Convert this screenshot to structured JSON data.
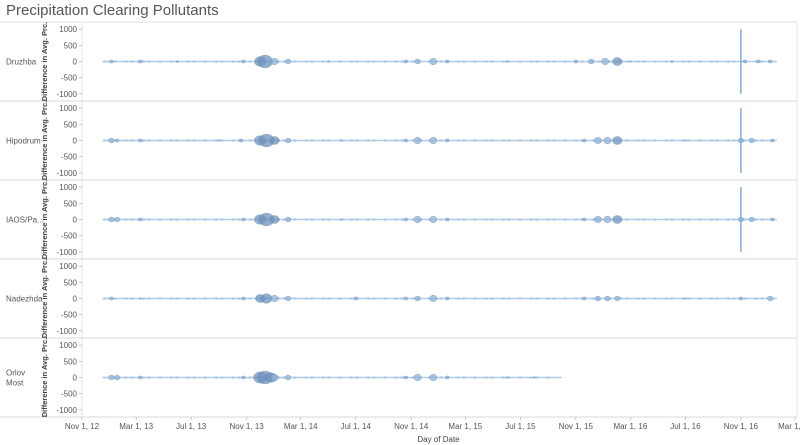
{
  "chart_data": {
    "type": "scatter",
    "title": "Precipitation Clearing Pollutants",
    "xlabel": "Day of Date",
    "ylabel": "Difference in Avg. Prc.",
    "ylim": [
      -1100,
      1100
    ],
    "y_ticks": [
      "1000",
      "500",
      "0",
      "-500",
      "-1000"
    ],
    "y_tick_values": [
      1000,
      500,
      0,
      -500,
      -1000
    ],
    "x_ticks": [
      "Nov 1, 12",
      "Mar 1, 13",
      "Jul 1, 13",
      "Nov 1, 13",
      "Mar 1, 14",
      "Jul 1, 14",
      "Nov 1, 14",
      "Mar 1, 15",
      "Jul 1, 15",
      "Nov 1, 15",
      "Mar 1, 16",
      "Jul 1, 16",
      "Nov 1, 16",
      "Mar 1, 17"
    ],
    "x_range": [
      "2012-11-01",
      "2017-03-01"
    ],
    "grid": false,
    "legend": "none",
    "color": "#7ea7cf",
    "rows": [
      {
        "label": "Druzhba",
        "bubbles": [
          [
            "2013-01-05",
            2
          ],
          [
            "2013-03-10",
            2
          ],
          [
            "2013-06-01",
            1
          ],
          [
            "2013-10-25",
            2
          ],
          [
            "2013-12-01",
            6
          ],
          [
            "2013-12-12",
            8
          ],
          [
            "2014-01-02",
            4
          ],
          [
            "2014-02-01",
            3
          ],
          [
            "2014-05-01",
            1
          ],
          [
            "2014-10-20",
            2
          ],
          [
            "2014-11-15",
            3
          ],
          [
            "2014-12-20",
            4
          ],
          [
            "2015-01-20",
            2
          ],
          [
            "2015-06-01",
            1
          ],
          [
            "2015-11-01",
            2
          ],
          [
            "2015-12-05",
            3
          ],
          [
            "2016-01-05",
            4
          ],
          [
            "2016-02-01",
            5
          ],
          [
            "2016-03-01",
            1
          ],
          [
            "2016-06-01",
            1
          ],
          [
            "2016-11-10",
            2
          ],
          [
            "2016-12-10",
            2
          ],
          [
            "2017-01-05",
            2
          ]
        ],
        "spike": [
          "2016-11-01",
          1000,
          -1000
        ]
      },
      {
        "label": "Hipodrum",
        "bubbles": [
          [
            "2013-01-05",
            3
          ],
          [
            "2013-01-18",
            2
          ],
          [
            "2013-03-10",
            2
          ],
          [
            "2013-09-01",
            1
          ],
          [
            "2013-10-20",
            2
          ],
          [
            "2013-12-01",
            6
          ],
          [
            "2013-12-15",
            8
          ],
          [
            "2014-01-02",
            5
          ],
          [
            "2014-02-01",
            3
          ],
          [
            "2014-06-01",
            1
          ],
          [
            "2014-10-20",
            2
          ],
          [
            "2014-11-15",
            4
          ],
          [
            "2014-12-20",
            4
          ],
          [
            "2015-01-20",
            2
          ],
          [
            "2015-11-20",
            2
          ],
          [
            "2015-12-20",
            4
          ],
          [
            "2016-01-10",
            4
          ],
          [
            "2016-02-01",
            5
          ],
          [
            "2016-07-01",
            1
          ],
          [
            "2016-11-01",
            3
          ],
          [
            "2016-11-25",
            3
          ],
          [
            "2017-01-10",
            2
          ]
        ],
        "spike": [
          "2016-11-01",
          1000,
          -1000
        ]
      },
      {
        "label": "IAOS/Pa...",
        "bubbles": [
          [
            "2013-01-05",
            3
          ],
          [
            "2013-01-18",
            3
          ],
          [
            "2013-03-10",
            2
          ],
          [
            "2013-10-25",
            2
          ],
          [
            "2013-12-01",
            6
          ],
          [
            "2013-12-15",
            8
          ],
          [
            "2014-01-02",
            5
          ],
          [
            "2014-02-01",
            3
          ],
          [
            "2014-06-01",
            1
          ],
          [
            "2014-10-20",
            2
          ],
          [
            "2014-11-15",
            4
          ],
          [
            "2014-12-20",
            4
          ],
          [
            "2015-01-20",
            2
          ],
          [
            "2015-11-20",
            2
          ],
          [
            "2015-12-20",
            4
          ],
          [
            "2016-01-10",
            4
          ],
          [
            "2016-02-01",
            5
          ],
          [
            "2016-11-01",
            3
          ],
          [
            "2016-11-25",
            3
          ],
          [
            "2017-01-10",
            2
          ]
        ],
        "spike": [
          "2016-11-01",
          1000,
          -1000
        ]
      },
      {
        "label": "Nadezhda",
        "bubbles": [
          [
            "2013-01-05",
            2
          ],
          [
            "2013-03-10",
            1
          ],
          [
            "2013-10-25",
            2
          ],
          [
            "2013-12-01",
            5
          ],
          [
            "2013-12-15",
            6
          ],
          [
            "2014-01-02",
            4
          ],
          [
            "2014-02-01",
            3
          ],
          [
            "2014-07-01",
            2
          ],
          [
            "2014-10-20",
            2
          ],
          [
            "2014-11-15",
            3
          ],
          [
            "2014-12-20",
            4
          ],
          [
            "2015-01-20",
            2
          ],
          [
            "2015-11-20",
            2
          ],
          [
            "2015-12-20",
            3
          ],
          [
            "2016-01-10",
            3
          ],
          [
            "2016-02-01",
            3
          ],
          [
            "2016-07-01",
            1
          ],
          [
            "2016-11-01",
            2
          ],
          [
            "2017-01-05",
            3
          ]
        ],
        "spike": null
      },
      {
        "label": "Orlov Most",
        "bubbles": [
          [
            "2013-01-05",
            3
          ],
          [
            "2013-01-18",
            3
          ],
          [
            "2013-03-10",
            2
          ],
          [
            "2013-10-25",
            2
          ],
          [
            "2013-12-01",
            7
          ],
          [
            "2013-12-12",
            8
          ],
          [
            "2013-12-25",
            6
          ],
          [
            "2014-01-02",
            4
          ],
          [
            "2014-02-01",
            3
          ],
          [
            "2014-10-20",
            2
          ],
          [
            "2014-11-15",
            4
          ],
          [
            "2014-12-20",
            4
          ],
          [
            "2015-01-20",
            2
          ],
          [
            "2015-06-01",
            1
          ],
          [
            "2015-08-01",
            1
          ]
        ],
        "spike": null,
        "end": "2015-10-01"
      }
    ]
  }
}
